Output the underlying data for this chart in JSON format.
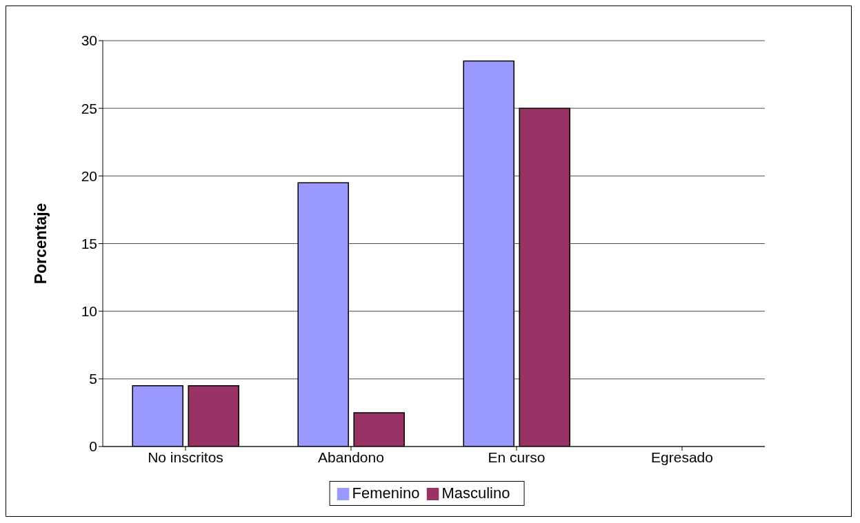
{
  "chart_data": {
    "type": "bar",
    "ylabel": "Porcentaje",
    "categories": [
      "No inscritos",
      "Abandono",
      "En curso",
      "Egresado"
    ],
    "series": [
      {
        "name": "Femenino",
        "color": "#9999ff",
        "values": [
          4.5,
          19.5,
          28.5,
          0
        ]
      },
      {
        "name": "Masculino",
        "color": "#993366",
        "values": [
          4.5,
          2.5,
          25,
          0
        ]
      }
    ],
    "ylim": [
      0,
      30
    ],
    "yticks": [
      0,
      5,
      10,
      15,
      20,
      25,
      30
    ],
    "grid": "y",
    "legend": "bottom"
  }
}
